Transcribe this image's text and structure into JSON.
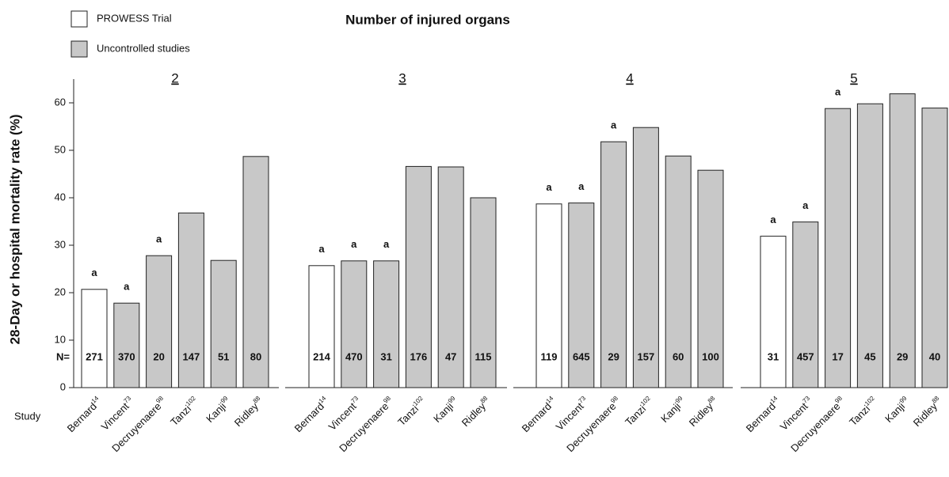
{
  "chart_data": {
    "type": "bar",
    "title": "Number of injured organs",
    "ylabel": "28-Day or hospital mortality rate (%)",
    "xlabel": "Study",
    "n_prefix": "N=",
    "groups": [
      "2",
      "3",
      "4",
      "5"
    ],
    "categories": [
      "Bernard",
      "Vincent",
      "Decruyenaere",
      "Tanzi",
      "Kanji",
      "Ridley",
      "Bernard",
      "Vincent",
      "Decruyenaere",
      "Tanzi",
      "Kanji",
      "Ridley",
      "Bernard",
      "Vincent",
      "Decruyenaere",
      "Tanzi",
      "Kanji",
      "Ridley",
      "Bernard",
      "Vincent",
      "Decruyenaere",
      "Tanzi",
      "Kanji",
      "Ridley"
    ],
    "category_refs": [
      "14",
      "73",
      "98",
      "102",
      "99",
      "88",
      "14",
      "73",
      "98",
      "102",
      "99",
      "88",
      "14",
      "73",
      "98",
      "102",
      "99",
      "88",
      "14",
      "73",
      "98",
      "102",
      "99",
      "88"
    ],
    "series": [
      {
        "name": "PROWESS Trial",
        "color": "#ffffff",
        "values": [
          20.7,
          null,
          null,
          null,
          null,
          null,
          25.7,
          null,
          null,
          null,
          null,
          null,
          38.7,
          null,
          null,
          null,
          null,
          null,
          31.9,
          null,
          null,
          null,
          null,
          null
        ]
      },
      {
        "name": "Uncontrolled studies",
        "color": "#c8c8c8",
        "values": [
          null,
          17.8,
          27.8,
          36.8,
          26.8,
          48.7,
          null,
          26.7,
          26.7,
          46.6,
          46.5,
          40,
          null,
          38.9,
          51.8,
          54.8,
          48.8,
          45.8,
          null,
          34.9,
          58.8,
          59.8,
          61.9,
          58.9
        ]
      }
    ],
    "n_labels": [
      "271",
      "370",
      "20",
      "147",
      "51",
      "80",
      "214",
      "470",
      "31",
      "176",
      "47",
      "115",
      "119",
      "645",
      "29",
      "157",
      "60",
      "100",
      "31",
      "457",
      "17",
      "45",
      "29",
      "40"
    ],
    "annotations": [
      "a",
      "a",
      "a",
      null,
      null,
      null,
      "a",
      "a",
      "a",
      null,
      null,
      null,
      "a",
      "a",
      "a",
      null,
      null,
      null,
      "a",
      "a",
      "a",
      null,
      null,
      null
    ],
    "ylim": [
      0,
      65
    ],
    "yticks": [
      0,
      10,
      20,
      30,
      40,
      50,
      60
    ]
  }
}
